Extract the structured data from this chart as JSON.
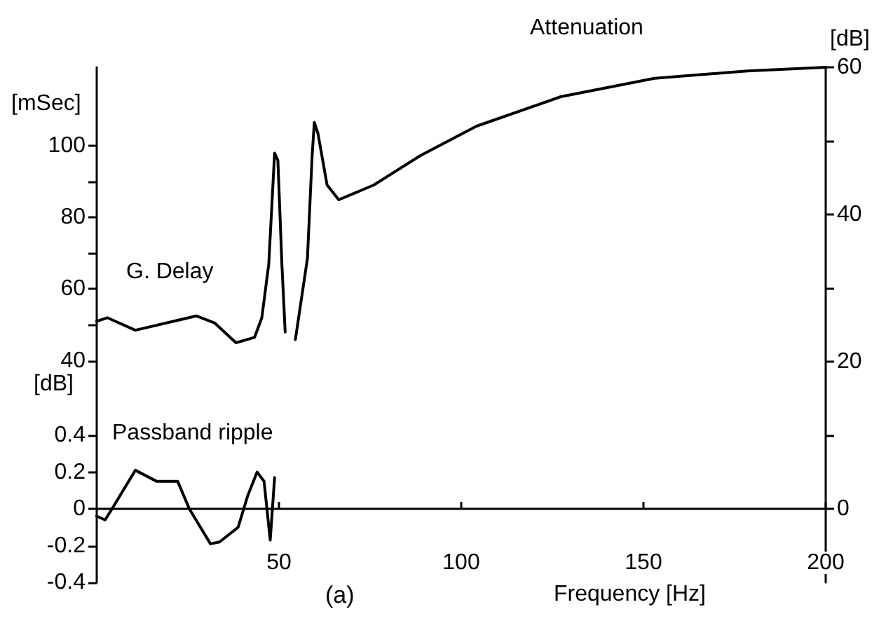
{
  "chart_data": {
    "type": "line",
    "xlabel": "Frequency [Hz]",
    "ylabel": "[mSec]",
    "y2label": "[dB]",
    "y3label": "[dB]",
    "annotations": [
      "(a)"
    ],
    "xlim": [
      0,
      200
    ],
    "xticks": [
      50,
      100,
      150,
      200
    ],
    "ylim": [
      -22,
      122
    ],
    "yticks": [
      40,
      {
        "value": 50,
        "label": null
      },
      60,
      {
        "value": 70,
        "label": null
      },
      80,
      {
        "value": 90,
        "label": null
      },
      100
    ],
    "y2lim": [
      -10,
      60
    ],
    "y2ticks": [
      0,
      {
        "value": 10,
        "label": null
      },
      20,
      {
        "value": 30,
        "label": null
      },
      40,
      {
        "value": 50,
        "label": null
      },
      60
    ],
    "y3lim": [
      -0.4,
      2.4
    ],
    "y3ticks": [
      -0.4,
      -0.2,
      0,
      0.2,
      0.4
    ],
    "marker": "none",
    "line_style": "solid",
    "series": [
      {
        "name": "G. Delay",
        "color": "#000000",
        "axis": "y",
        "x": [
          0,
          2.9,
          10.6,
          27.3,
          32.4,
          38.2,
          43.3,
          45.3,
          47.2,
          48.8,
          49.7,
          50.8,
          51.7
        ],
        "values": [
          51,
          52,
          48.5,
          52.5,
          50.5,
          45,
          46.5,
          52,
          67,
          98,
          96,
          67,
          48
        ]
      },
      {
        "name": "Attenuation",
        "color": "#000000",
        "axis": "y2",
        "x": [
          54.5,
          57.8,
          59.1,
          59.7,
          60.7,
          63.2,
          66.4,
          76,
          88.8,
          104.2,
          127.3,
          153,
          178.5,
          200
        ],
        "values": [
          23,
          34,
          48,
          52.5,
          51,
          44,
          42,
          44,
          48,
          52,
          56,
          58.5,
          59.5,
          60
        ]
      },
      {
        "name": "Passband ripple",
        "color": "#000000",
        "axis": "y3",
        "x": [
          0,
          2.3,
          4.2,
          10.6,
          16.4,
          22.2,
          25.4,
          31.2,
          33.7,
          38.8,
          41.4,
          44,
          45.9,
          47.6,
          48.8
        ],
        "values": [
          -0.04,
          -0.06,
          0,
          0.21,
          0.15,
          0.15,
          0,
          -0.19,
          -0.18,
          -0.1,
          0.07,
          0.2,
          0.15,
          -0.17,
          0.17
        ]
      }
    ]
  }
}
